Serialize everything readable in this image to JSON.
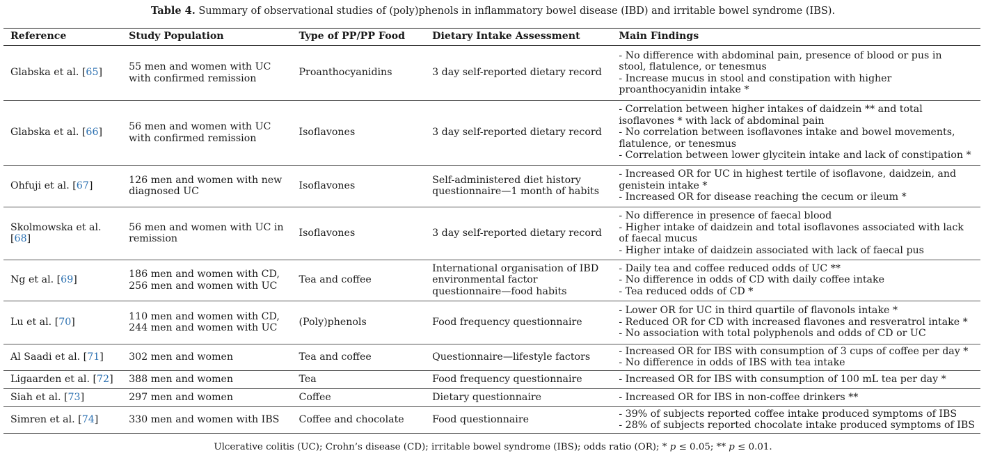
{
  "caption": {
    "label": "Table 4.",
    "text": " Summary of observational studies of (poly)phenols in inflammatory bowel disease (IBD) and irritable bowel syndrome (IBS)."
  },
  "headers": [
    "Reference",
    "Study Population",
    "Type of PP/PP Food",
    "Dietary Intake Assessment",
    "Main Findings"
  ],
  "rows": [
    {
      "ref_name": "Glabska et al. [",
      "ref_num": "65",
      "ref_close": "]",
      "population": [
        "55 men and women with UC",
        "with confirmed remission"
      ],
      "type": "Proanthocyanidins",
      "assessment": [
        "3 day self-reported dietary record"
      ],
      "findings": [
        "- No difference with abdominal pain, presence of blood or pus in",
        "stool, flatulence, or tenesmus",
        "- Increase mucus in stool and constipation with higher",
        "proanthocyanidin intake *"
      ]
    },
    {
      "ref_name": "Glabska et al. [",
      "ref_num": "66",
      "ref_close": "]",
      "population": [
        "56 men and women with UC",
        "with confirmed remission"
      ],
      "type": "Isoflavones",
      "assessment": [
        "3 day self-reported dietary record"
      ],
      "findings": [
        "- Correlation between higher intakes of daidzein ** and total",
        "isoflavones * with lack of abdominal pain",
        "- No correlation between isoflavones intake and bowel movements,",
        "flatulence, or tenesmus",
        "- Correlation between lower glycitein intake and lack of constipation *"
      ]
    },
    {
      "ref_name": "Ohfuji et al. [",
      "ref_num": "67",
      "ref_close": "]",
      "population": [
        "126 men and women with new",
        "diagnosed UC"
      ],
      "type": "Isoflavones",
      "assessment": [
        "Self-administered diet history",
        "questionnaire—1 month of habits"
      ],
      "findings": [
        "- Increased OR for UC in highest tertile of isoflavone, daidzein, and",
        "genistein intake *",
        "- Increased OR for disease reaching the cecum or ileum *"
      ]
    },
    {
      "ref_name": "Skolmowska et al.",
      "ref_line2": "[",
      "ref_num": "68",
      "ref_close": "]",
      "population": [
        "56 men and women with UC in",
        "remission"
      ],
      "type": "Isoflavones",
      "assessment": [
        "3 day self-reported dietary record"
      ],
      "findings": [
        "- No difference in presence of faecal blood",
        "- Higher intake of daidzein and total isoflavones associated with lack",
        "of faecal mucus",
        "- Higher intake of daidzein associated with lack of faecal pus"
      ]
    },
    {
      "ref_name": "Ng et al. [",
      "ref_num": "69",
      "ref_close": "]",
      "population": [
        "186 men and women with CD,",
        "256 men and women with UC"
      ],
      "type": "Tea and coffee",
      "assessment": [
        "International organisation of IBD",
        "environmental factor",
        "questionnaire—food habits"
      ],
      "findings": [
        "- Daily tea and coffee reduced odds of UC **",
        "- No difference in odds of CD with daily coffee intake",
        "- Tea reduced odds of CD *"
      ]
    },
    {
      "ref_name": "Lu et al. [",
      "ref_num": "70",
      "ref_close": "]",
      "population": [
        "110 men and women with CD,",
        "244 men and women with UC"
      ],
      "type": "(Poly)phenols",
      "assessment": [
        "Food frequency questionnaire"
      ],
      "findings": [
        "- Lower OR for UC in third quartile of flavonols intake *",
        "- Reduced OR for CD with increased flavones and resveratrol intake *",
        "- No association with total polyphenols and odds of CD or UC"
      ]
    },
    {
      "ref_name": "Al Saadi et al. [",
      "ref_num": "71",
      "ref_close": "]",
      "population": [
        "302 men and women"
      ],
      "type": "Tea and coffee",
      "assessment": [
        "Questionnaire—lifestyle factors"
      ],
      "findings": [
        "- Increased OR for IBS with consumption of 3 cups of coffee per day *",
        "- No difference in odds of IBS with tea intake"
      ]
    },
    {
      "ref_name": "Ligaarden et al. [",
      "ref_num": "72",
      "ref_close": "]",
      "population": [
        "388 men and women"
      ],
      "type": "Tea",
      "assessment": [
        "Food frequency questionnaire"
      ],
      "findings": [
        "- Increased OR for IBS with consumption of 100 mL tea per day *"
      ]
    },
    {
      "ref_name": "Siah et al. [",
      "ref_num": "73",
      "ref_close": "]",
      "population": [
        "297 men and women"
      ],
      "type": "Coffee",
      "assessment": [
        "Dietary questionnaire"
      ],
      "findings": [
        "- Increased OR for IBS in non-coffee drinkers **"
      ]
    },
    {
      "ref_name": "Simren et al. [",
      "ref_num": "74",
      "ref_close": "]",
      "population": [
        "330 men and women with IBS"
      ],
      "type": "Coffee and chocolate",
      "assessment": [
        "Food questionnaire"
      ],
      "findings": [
        "- 39% of subjects reported coffee intake produced symptoms of IBS",
        "- 28% of subjects reported chocolate intake produced symptoms of IBS"
      ]
    }
  ],
  "footnote": {
    "text": "Ulcerative colitis (UC); Crohn’s disease (CD); irritable bowel syndrome (IBS); odds ratio (OR); * ",
    "p1": "p",
    "t1": " ≤ 0.05; ** ",
    "p2": "p",
    "t2": " ≤ 0.01."
  }
}
